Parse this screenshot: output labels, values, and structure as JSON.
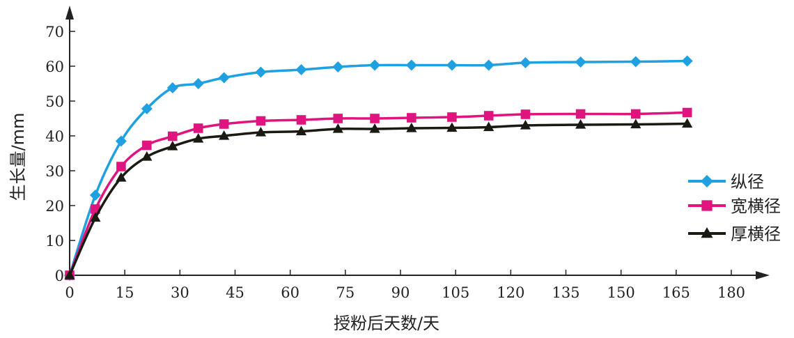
{
  "chart_data": {
    "type": "line",
    "xlabel": "授粉后天数/天",
    "ylabel": "生长量/mm",
    "xlim": [
      0,
      185
    ],
    "ylim": [
      0,
      75
    ],
    "xticks": [
      0,
      15,
      30,
      45,
      60,
      75,
      90,
      105,
      120,
      135,
      150,
      165,
      180
    ],
    "yticks": [
      0,
      10,
      20,
      30,
      40,
      50,
      60,
      70
    ],
    "x_tick_labels": [
      "0",
      "15",
      "30",
      "45",
      "60",
      "75",
      "90",
      "105",
      "120",
      "135",
      "150",
      "165",
      "180"
    ],
    "y_tick_labels": [
      "0",
      "10",
      "20",
      "30",
      "40",
      "50",
      "60",
      "70"
    ],
    "grid": false,
    "legend_position": "right",
    "series": [
      {
        "name": "纵径",
        "color": "#1FA0E0",
        "marker": "diamond",
        "x": [
          0,
          7,
          14,
          21,
          28,
          35,
          42,
          52,
          63,
          73,
          83,
          93,
          104,
          114,
          124,
          139,
          154,
          168
        ],
        "y": [
          0,
          23,
          38.5,
          47.8,
          53.8,
          55,
          56.7,
          58.3,
          59,
          59.8,
          60.3,
          60.3,
          60.3,
          60.3,
          61,
          61.2,
          61.3,
          61.5
        ]
      },
      {
        "name": "宽横径",
        "color": "#E0147E",
        "marker": "square",
        "x": [
          0,
          7,
          14,
          21,
          28,
          35,
          42,
          52,
          63,
          73,
          83,
          93,
          104,
          114,
          124,
          139,
          154,
          168
        ],
        "y": [
          0,
          19,
          31.2,
          37.3,
          39.9,
          42.2,
          43.4,
          44.3,
          44.6,
          45,
          45,
          45.2,
          45.4,
          45.8,
          46.2,
          46.3,
          46.3,
          46.7
        ]
      },
      {
        "name": "厚横径",
        "color": "#1A1A12",
        "marker": "triangle",
        "x": [
          0,
          7,
          14,
          21,
          28,
          35,
          42,
          52,
          63,
          73,
          83,
          93,
          104,
          114,
          124,
          139,
          154,
          168
        ],
        "y": [
          0,
          16.5,
          28,
          34,
          37,
          39.2,
          40,
          41,
          41.3,
          42,
          42,
          42.2,
          42.3,
          42.5,
          43,
          43.2,
          43.3,
          43.5
        ]
      }
    ]
  }
}
